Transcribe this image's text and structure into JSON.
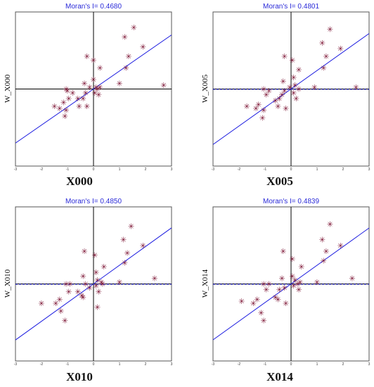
{
  "chart_data": [
    {
      "type": "scatter",
      "title": "Moran's I= 0.4680",
      "xlabel": "X000",
      "ylabel": "W_X000",
      "xlim": [
        -3,
        3
      ],
      "ylim": [
        -2,
        2
      ],
      "xticks": [
        "-3",
        "-2",
        "-1",
        "0",
        "1",
        "2",
        "3"
      ],
      "slope": 0.468,
      "dashed_zero_line": false,
      "points": [
        {
          "x": -1.5,
          "y": -0.45
        },
        {
          "x": -1.3,
          "y": -0.5
        },
        {
          "x": -1.15,
          "y": -0.35
        },
        {
          "x": -1.1,
          "y": -0.7
        },
        {
          "x": -1.05,
          "y": -0.55
        },
        {
          "x": -1.0,
          "y": -0.05
        },
        {
          "x": -1.05,
          "y": 0.0
        },
        {
          "x": -0.95,
          "y": -0.25
        },
        {
          "x": -0.8,
          "y": -0.1
        },
        {
          "x": -0.6,
          "y": -0.25
        },
        {
          "x": -0.55,
          "y": -0.45
        },
        {
          "x": -0.4,
          "y": -0.25
        },
        {
          "x": -0.3,
          "y": -0.1
        },
        {
          "x": -0.25,
          "y": -0.45
        },
        {
          "x": -0.35,
          "y": 0.15
        },
        {
          "x": -0.15,
          "y": 0.05
        },
        {
          "x": 0.0,
          "y": 0.25
        },
        {
          "x": 0.05,
          "y": -0.1
        },
        {
          "x": 0.1,
          "y": 0.05
        },
        {
          "x": 0.15,
          "y": 0.0
        },
        {
          "x": 0.2,
          "y": -0.15
        },
        {
          "x": 0.25,
          "y": 0.05
        },
        {
          "x": 0.25,
          "y": 0.55
        },
        {
          "x": -0.25,
          "y": 0.85
        },
        {
          "x": 0.0,
          "y": 0.75
        },
        {
          "x": 1.0,
          "y": 0.15
        },
        {
          "x": 1.25,
          "y": 0.55
        },
        {
          "x": 1.35,
          "y": 0.85
        },
        {
          "x": 1.2,
          "y": 1.35
        },
        {
          "x": 1.55,
          "y": 1.6
        },
        {
          "x": 1.9,
          "y": 1.1
        },
        {
          "x": 2.7,
          "y": 0.1
        }
      ]
    },
    {
      "type": "scatter",
      "title": "Moran's I= 0.4801",
      "xlabel": "X005",
      "ylabel": "W_X005",
      "xlim": [
        -3,
        3
      ],
      "ylim": [
        -2,
        2
      ],
      "xticks": [
        "-3",
        "-2",
        "-1",
        "0",
        "1",
        "2",
        "3"
      ],
      "slope": 0.4801,
      "dashed_zero_line": true,
      "points": [
        {
          "x": -1.7,
          "y": -0.45
        },
        {
          "x": -1.35,
          "y": -0.5
        },
        {
          "x": -1.25,
          "y": -0.4
        },
        {
          "x": -1.1,
          "y": -0.75
        },
        {
          "x": -1.05,
          "y": -0.55
        },
        {
          "x": -1.05,
          "y": 0.0
        },
        {
          "x": -0.95,
          "y": -0.15
        },
        {
          "x": -0.85,
          "y": -0.05
        },
        {
          "x": -0.6,
          "y": -0.3
        },
        {
          "x": -0.5,
          "y": -0.45
        },
        {
          "x": -0.45,
          "y": -0.25
        },
        {
          "x": -0.35,
          "y": -0.15
        },
        {
          "x": -0.25,
          "y": -0.05
        },
        {
          "x": -0.3,
          "y": 0.2
        },
        {
          "x": -0.2,
          "y": -0.5
        },
        {
          "x": -0.05,
          "y": 0.05
        },
        {
          "x": 0.1,
          "y": 0.3
        },
        {
          "x": 0.1,
          "y": -0.1
        },
        {
          "x": 0.15,
          "y": 0.1
        },
        {
          "x": 0.3,
          "y": 0.0
        },
        {
          "x": 0.2,
          "y": -0.25
        },
        {
          "x": 0.3,
          "y": 0.5
        },
        {
          "x": -0.25,
          "y": 0.85
        },
        {
          "x": 0.05,
          "y": 0.75
        },
        {
          "x": 0.9,
          "y": 0.05
        },
        {
          "x": 1.25,
          "y": 0.55
        },
        {
          "x": 1.35,
          "y": 0.85
        },
        {
          "x": 1.2,
          "y": 1.2
        },
        {
          "x": 1.5,
          "y": 1.55
        },
        {
          "x": 1.9,
          "y": 1.05
        },
        {
          "x": 2.5,
          "y": 0.05
        }
      ]
    },
    {
      "type": "scatter",
      "title": "Moran's I= 0.4850",
      "xlabel": "X010",
      "ylabel": "W_X010",
      "xlim": [
        -3,
        3
      ],
      "ylim": [
        -2,
        2
      ],
      "xticks": [
        "-3",
        "-2",
        "-1",
        "0",
        "1",
        "2",
        "3"
      ],
      "slope": 0.485,
      "dashed_zero_line": true,
      "points": [
        {
          "x": -2.0,
          "y": -0.5
        },
        {
          "x": -1.45,
          "y": -0.5
        },
        {
          "x": -1.3,
          "y": -0.4
        },
        {
          "x": -1.25,
          "y": -0.7
        },
        {
          "x": -1.1,
          "y": -0.95
        },
        {
          "x": -1.05,
          "y": 0.0
        },
        {
          "x": -0.95,
          "y": -0.2
        },
        {
          "x": -0.9,
          "y": 0.0
        },
        {
          "x": -0.6,
          "y": -0.2
        },
        {
          "x": -0.45,
          "y": -0.3
        },
        {
          "x": -0.4,
          "y": -0.35
        },
        {
          "x": -0.4,
          "y": 0.2
        },
        {
          "x": -0.3,
          "y": 0.0
        },
        {
          "x": -0.15,
          "y": -0.1
        },
        {
          "x": 0.1,
          "y": -0.05
        },
        {
          "x": 0.15,
          "y": 0.1
        },
        {
          "x": 0.1,
          "y": 0.3
        },
        {
          "x": 0.2,
          "y": -0.2
        },
        {
          "x": 0.3,
          "y": 0.05
        },
        {
          "x": 0.35,
          "y": 0.0
        },
        {
          "x": 0.15,
          "y": -0.6
        },
        {
          "x": 0.4,
          "y": 0.45
        },
        {
          "x": -0.35,
          "y": 0.85
        },
        {
          "x": 0.05,
          "y": 0.75
        },
        {
          "x": 1.0,
          "y": 0.05
        },
        {
          "x": 1.2,
          "y": 0.55
        },
        {
          "x": 1.3,
          "y": 0.8
        },
        {
          "x": 1.15,
          "y": 1.15
        },
        {
          "x": 1.45,
          "y": 1.5
        },
        {
          "x": 1.9,
          "y": 1.0
        },
        {
          "x": 2.35,
          "y": 0.15
        }
      ]
    },
    {
      "type": "scatter",
      "title": "Moran's I= 0.4839",
      "xlabel": "X014",
      "ylabel": "W_X014",
      "xlim": [
        -3,
        3
      ],
      "ylim": [
        -2,
        2
      ],
      "xticks": [
        "-3",
        "-2",
        "-1",
        "0",
        "1",
        "2",
        "3"
      ],
      "slope": 0.4839,
      "dashed_zero_line": true,
      "points": [
        {
          "x": -1.9,
          "y": -0.45
        },
        {
          "x": -1.45,
          "y": -0.5
        },
        {
          "x": -1.3,
          "y": -0.4
        },
        {
          "x": -1.15,
          "y": -0.75
        },
        {
          "x": -1.05,
          "y": -0.95
        },
        {
          "x": -1.05,
          "y": 0.0
        },
        {
          "x": -0.95,
          "y": -0.15
        },
        {
          "x": -0.85,
          "y": 0.0
        },
        {
          "x": -0.6,
          "y": -0.35
        },
        {
          "x": -0.5,
          "y": -0.4
        },
        {
          "x": -0.45,
          "y": -0.15
        },
        {
          "x": -0.35,
          "y": 0.15
        },
        {
          "x": -0.25,
          "y": -0.1
        },
        {
          "x": -0.2,
          "y": -0.5
        },
        {
          "x": 0.05,
          "y": 0.2
        },
        {
          "x": 0.1,
          "y": -0.05
        },
        {
          "x": 0.15,
          "y": 0.1
        },
        {
          "x": 0.25,
          "y": 0.0
        },
        {
          "x": 0.3,
          "y": -0.15
        },
        {
          "x": 0.35,
          "y": 0.05
        },
        {
          "x": 0.4,
          "y": 0.45
        },
        {
          "x": -0.3,
          "y": 0.85
        },
        {
          "x": 0.05,
          "y": 0.65
        },
        {
          "x": 1.0,
          "y": 0.05
        },
        {
          "x": 1.25,
          "y": 0.6
        },
        {
          "x": 1.35,
          "y": 0.85
        },
        {
          "x": 1.2,
          "y": 1.15
        },
        {
          "x": 1.5,
          "y": 1.55
        },
        {
          "x": 1.9,
          "y": 1.0
        },
        {
          "x": 2.35,
          "y": 0.15
        }
      ]
    }
  ],
  "colors": {
    "regression": "#1f1fe0",
    "points": "#7a1030",
    "axis": "#000000",
    "dashed_line": "#1f1fe0",
    "title_text": "#2a2ad8"
  }
}
